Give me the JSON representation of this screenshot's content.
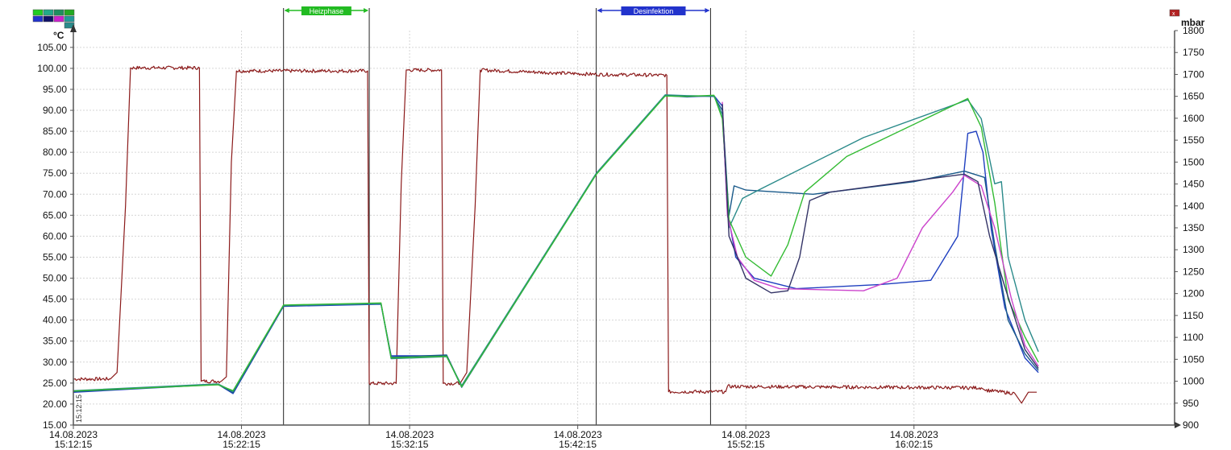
{
  "chart_data": {
    "type": "line",
    "title": "",
    "y_left_unit": "°C",
    "y_right_unit": "mbar",
    "y_left_ticks": [
      "15.00",
      "20.00",
      "25.00",
      "30.00",
      "35.00",
      "40.00",
      "45.00",
      "50.00",
      "55.00",
      "60.00",
      "65.00",
      "70.00",
      "75.00",
      "80.00",
      "85.00",
      "90.00",
      "95.00",
      "100.00",
      "105.00"
    ],
    "y_right_ticks": [
      "900",
      "950",
      "1000",
      "1050",
      "1100",
      "1150",
      "1200",
      "1250",
      "1300",
      "1350",
      "1400",
      "1450",
      "1500",
      "1550",
      "1600",
      "1650",
      "1700",
      "1750",
      "1800"
    ],
    "ylim_left": [
      15,
      109
    ],
    "ylim_right": [
      900,
      1800
    ],
    "x_range_minutes": [
      0,
      65.5
    ],
    "x_ticks": [
      {
        "minute": 0,
        "date": "14.08.2023",
        "time": "15:12:15"
      },
      {
        "minute": 10,
        "date": "14.08.2023",
        "time": "15:22:15"
      },
      {
        "minute": 20,
        "date": "14.08.2023",
        "time": "15:32:15"
      },
      {
        "minute": 30,
        "date": "14.08.2023",
        "time": "15:42:15"
      },
      {
        "minute": 40,
        "date": "14.08.2023",
        "time": "15:52:15"
      },
      {
        "minute": 50,
        "date": "14.08.2023",
        "time": "16:02:15"
      }
    ],
    "markers": [
      {
        "label": "Heizphase",
        "start": 12.5,
        "end": 17.6,
        "color": "#22bb22"
      },
      {
        "label": "Desinfektion",
        "start": 31.1,
        "end": 37.9,
        "color": "#2233cc"
      }
    ],
    "corner_stamp": "15:12:15",
    "grid": true,
    "series": [
      {
        "axis": "right",
        "color": "#8b1a1a",
        "noise": 4,
        "points": [
          [
            0,
            1005
          ],
          [
            2.2,
            1005
          ],
          [
            2.6,
            1020
          ],
          [
            3.1,
            1400
          ],
          [
            3.4,
            1715
          ],
          [
            7.5,
            1715
          ],
          [
            7.6,
            1000
          ],
          [
            8.8,
            1000
          ],
          [
            9.1,
            1010
          ],
          [
            9.4,
            1500
          ],
          [
            9.7,
            1708
          ],
          [
            17.5,
            1708
          ],
          [
            17.6,
            995
          ],
          [
            19.2,
            995
          ],
          [
            19.5,
            1450
          ],
          [
            19.8,
            1710
          ],
          [
            21.9,
            1710
          ],
          [
            22.0,
            995
          ],
          [
            23.0,
            995
          ],
          [
            23.4,
            1020
          ],
          [
            23.9,
            1400
          ],
          [
            24.2,
            1710
          ],
          [
            31.1,
            1700
          ],
          [
            35.3,
            1698
          ],
          [
            35.4,
            976
          ],
          [
            38.8,
            976
          ],
          [
            38.9,
            988
          ],
          [
            54.0,
            985
          ],
          [
            54.2,
            980
          ],
          [
            56.0,
            972
          ],
          [
            56.4,
            950
          ],
          [
            56.8,
            975
          ],
          [
            57.3,
            975
          ]
        ]
      },
      {
        "axis": "left",
        "color": "#1f3fbf",
        "noise": 0,
        "points": [
          [
            0,
            22.8
          ],
          [
            8.6,
            24.7
          ],
          [
            9.5,
            22.5
          ],
          [
            12.5,
            43.3
          ],
          [
            18.3,
            43.8
          ],
          [
            18.9,
            31.5
          ],
          [
            22.2,
            31.5
          ],
          [
            23.1,
            24.0
          ],
          [
            31.1,
            74.8
          ],
          [
            35.2,
            93.5
          ],
          [
            36.5,
            93.2
          ],
          [
            38.1,
            93.5
          ],
          [
            38.6,
            91.0
          ],
          [
            38.9,
            66.0
          ],
          [
            39.4,
            55.0
          ],
          [
            40.5,
            50.0
          ],
          [
            43,
            47.5
          ],
          [
            48,
            48.5
          ],
          [
            51,
            49.5
          ],
          [
            52.6,
            60.0
          ],
          [
            53.2,
            84.5
          ],
          [
            53.7,
            85.0
          ],
          [
            54.1,
            80.0
          ],
          [
            54.6,
            61.5
          ],
          [
            55.4,
            43.0
          ],
          [
            56.6,
            31.0
          ],
          [
            57.4,
            27.5
          ]
        ]
      },
      {
        "axis": "left",
        "color": "#1a5a8a",
        "noise": 0,
        "points": [
          [
            0,
            23.0
          ],
          [
            8.6,
            24.7
          ],
          [
            9.5,
            22.7
          ],
          [
            12.5,
            43.4
          ],
          [
            18.3,
            44.0
          ],
          [
            18.9,
            31.2
          ],
          [
            22.2,
            31.7
          ],
          [
            23.1,
            24.2
          ],
          [
            31.1,
            74.9
          ],
          [
            35.2,
            93.6
          ],
          [
            36.5,
            93.4
          ],
          [
            38.1,
            93.3
          ],
          [
            38.6,
            90.0
          ],
          [
            39.0,
            65.0
          ],
          [
            39.3,
            72.0
          ],
          [
            40.0,
            71.0
          ],
          [
            44,
            70.0
          ],
          [
            50,
            73.0
          ],
          [
            53.0,
            75.5
          ],
          [
            54.2,
            74.0
          ],
          [
            54.8,
            58.0
          ],
          [
            55.6,
            40.0
          ],
          [
            56.6,
            32.0
          ],
          [
            57.4,
            28.0
          ]
        ]
      },
      {
        "axis": "left",
        "color": "#2a8a8a",
        "noise": 0,
        "points": [
          [
            0,
            23.2
          ],
          [
            8.6,
            24.8
          ],
          [
            9.5,
            23.0
          ],
          [
            12.5,
            43.5
          ],
          [
            18.3,
            43.9
          ],
          [
            18.9,
            30.8
          ],
          [
            22.2,
            31.3
          ],
          [
            23.1,
            24.4
          ],
          [
            31.1,
            75.0
          ],
          [
            35.2,
            93.7
          ],
          [
            36.5,
            93.5
          ],
          [
            38.1,
            93.4
          ],
          [
            38.6,
            89.0
          ],
          [
            39.0,
            62.0
          ],
          [
            39.8,
            69.0
          ],
          [
            41,
            71.5
          ],
          [
            47,
            83.5
          ],
          [
            53.2,
            92.5
          ],
          [
            54.0,
            88.0
          ],
          [
            54.8,
            72.5
          ],
          [
            55.2,
            73.0
          ],
          [
            55.6,
            55.0
          ],
          [
            56.6,
            40.0
          ],
          [
            57.4,
            32.5
          ]
        ]
      },
      {
        "axis": "left",
        "color": "#33bb33",
        "noise": 0,
        "points": [
          [
            0,
            23.1
          ],
          [
            8.6,
            24.6
          ],
          [
            9.5,
            23.2
          ],
          [
            12.5,
            43.6
          ],
          [
            18.3,
            44.1
          ],
          [
            18.9,
            31.0
          ],
          [
            22.2,
            31.4
          ],
          [
            23.1,
            24.1
          ],
          [
            31.1,
            74.7
          ],
          [
            35.2,
            93.4
          ],
          [
            36.5,
            93.3
          ],
          [
            38.1,
            93.6
          ],
          [
            38.6,
            88.0
          ],
          [
            39.0,
            64.0
          ],
          [
            40.0,
            55.0
          ],
          [
            41.5,
            50.5
          ],
          [
            42.5,
            58.0
          ],
          [
            43.5,
            70.5
          ],
          [
            46,
            79.0
          ],
          [
            53.2,
            92.8
          ],
          [
            54.0,
            86.0
          ],
          [
            54.8,
            68.0
          ],
          [
            55.6,
            45.0
          ],
          [
            56.6,
            36.0
          ],
          [
            57.4,
            30.0
          ]
        ]
      },
      {
        "axis": "left",
        "color": "#cc44cc",
        "noise": 0,
        "points": [
          [
            38.6,
            92.0
          ],
          [
            38.9,
            65.0
          ],
          [
            39.5,
            55.0
          ],
          [
            40.5,
            49.5
          ],
          [
            42,
            47.5
          ],
          [
            47,
            47.0
          ],
          [
            49,
            50.0
          ],
          [
            50.5,
            62.0
          ],
          [
            52.3,
            70.5
          ],
          [
            53.0,
            74.5
          ],
          [
            54.0,
            72.0
          ],
          [
            54.8,
            62.0
          ],
          [
            55.8,
            45.0
          ],
          [
            56.6,
            34.0
          ],
          [
            57.4,
            29.0
          ]
        ]
      },
      {
        "axis": "left",
        "color": "#333366",
        "noise": 0,
        "points": [
          [
            38.6,
            91.5
          ],
          [
            39.0,
            60.0
          ],
          [
            40.0,
            50.0
          ],
          [
            41.5,
            46.5
          ],
          [
            42.5,
            47.0
          ],
          [
            43.2,
            55.0
          ],
          [
            43.8,
            68.5
          ],
          [
            45,
            70.5
          ],
          [
            53.0,
            74.8
          ],
          [
            53.8,
            73.0
          ],
          [
            54.5,
            60.0
          ],
          [
            55.4,
            48.0
          ],
          [
            56.6,
            33.0
          ],
          [
            57.4,
            28.5
          ]
        ]
      }
    ]
  }
}
